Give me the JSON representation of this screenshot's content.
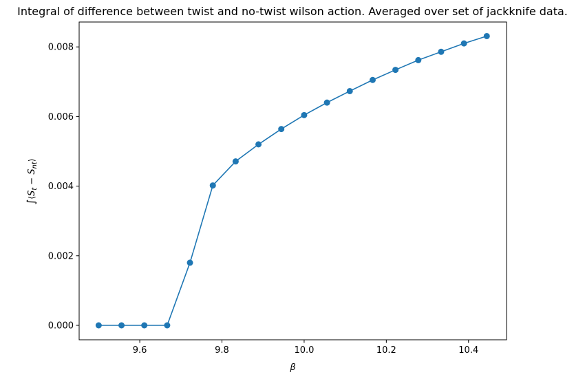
{
  "chart_data": {
    "type": "line",
    "title": "Integral of difference between twist and no-twist wilson action. Averaged over set of jackknife data.",
    "xlabel": "β",
    "ylabel": "∫⟨S_t − S_nt⟩",
    "ylabel_parts": {
      "integral": "∫",
      "s1": "S",
      "sub1": "t",
      "minus": " − ",
      "s2": "S",
      "sub2": "nt"
    },
    "xlim": [
      9.4525,
      10.4925
    ],
    "ylim": [
      -0.000415,
      0.008715
    ],
    "xticks": [
      9.6,
      9.8,
      10.0,
      10.2,
      10.4
    ],
    "xtick_labels": [
      "9.6",
      "9.8",
      "10.0",
      "10.2",
      "10.4"
    ],
    "yticks": [
      0.0,
      0.002,
      0.004,
      0.006,
      0.008
    ],
    "ytick_labels": [
      "0.000",
      "0.002",
      "0.004",
      "0.006",
      "0.008"
    ],
    "grid": false,
    "legend": "none",
    "color": "#1f77b4",
    "marker": "circle",
    "series": [
      {
        "x": [
          9.5,
          9.5556,
          9.6111,
          9.6667,
          9.7222,
          9.7778,
          9.8333,
          9.8889,
          9.9444,
          10.0,
          10.0556,
          10.1111,
          10.1667,
          10.2222,
          10.2778,
          10.3333,
          10.3889,
          10.4444
        ],
        "y": [
          0.0,
          0.0,
          0.0,
          0.0,
          0.0018,
          0.00402,
          0.00471,
          0.0052,
          0.00564,
          0.00604,
          0.0064,
          0.00673,
          0.00705,
          0.00734,
          0.00762,
          0.00786,
          0.0081,
          0.00831
        ]
      }
    ]
  }
}
